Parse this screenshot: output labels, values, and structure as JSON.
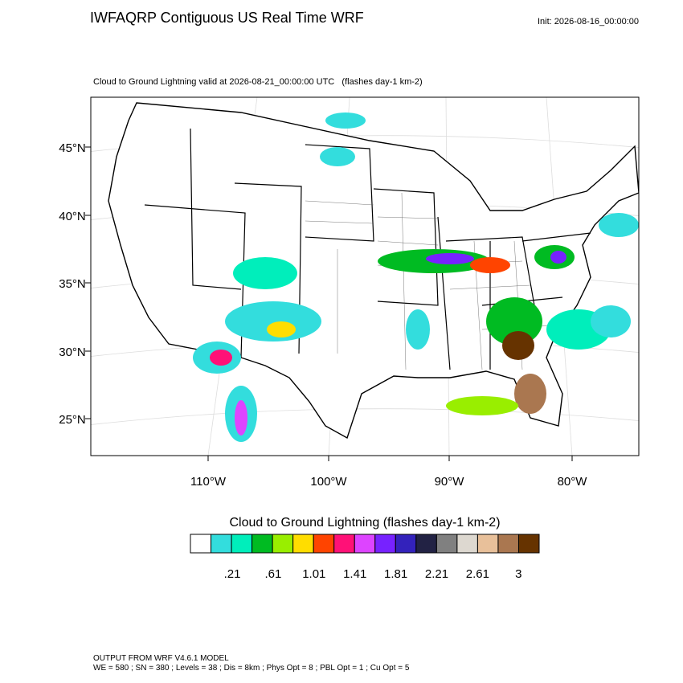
{
  "header": {
    "title": "IWFAQRP Contiguous US Real Time WRF",
    "init": "Init: 2026-08-16_00:00:00"
  },
  "map": {
    "subtitle": "Cloud to Ground Lightning valid at 2026-08-21_00:00:00 UTC   (flashes day-1 km-2)",
    "lat_labels": [
      "45°N",
      "40°N",
      "35°N",
      "30°N",
      "25°N"
    ],
    "lon_labels": [
      "110°W",
      "100°W",
      "90°W",
      "80°W"
    ]
  },
  "colorbar": {
    "title": "Cloud to Ground Lightning  (flashes day-1 km-2)",
    "colors": [
      "#ffffff",
      "#33dddd",
      "#00eebb",
      "#00bb22",
      "#99ee00",
      "#ffdd00",
      "#ff4400",
      "#ff1177",
      "#dd44ff",
      "#7722ff",
      "#3322bb",
      "#222244",
      "#808080",
      "#ddd8d0",
      "#e8c09a",
      "#aa7750",
      "#663300"
    ],
    "labels": [
      ".21",
      ".61",
      "1.01",
      "1.41",
      "1.81",
      "2.21",
      "2.61",
      "3"
    ]
  },
  "footer": {
    "line1": "OUTPUT FROM WRF V4.6.1 MODEL",
    "line2": "WE = 580 ; SN = 380 ; Levels = 38 ; Dis = 8km ; Phys Opt = 8 ; PBL Opt = 1 ; Cu Opt = 5"
  }
}
